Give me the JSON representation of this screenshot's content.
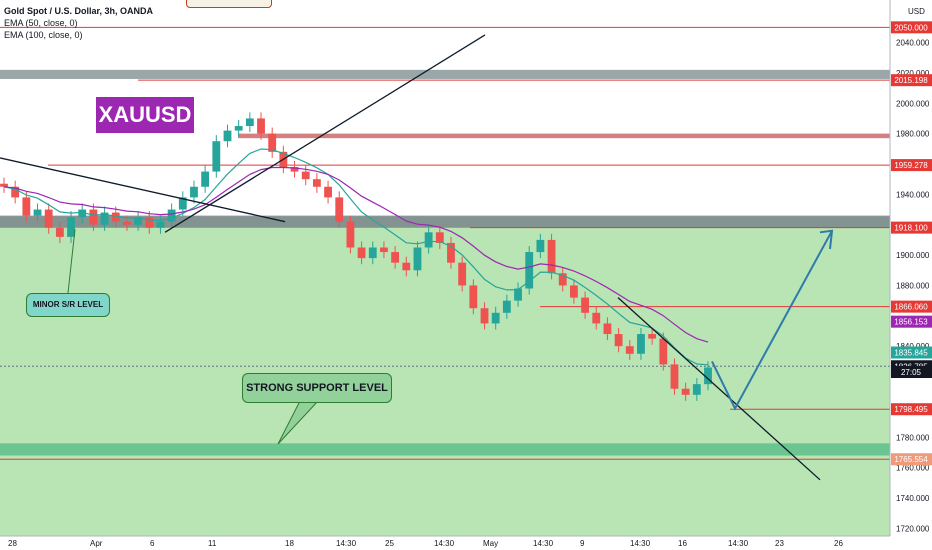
{
  "legend": {
    "title": "Gold Spot / U.S. Dollar, 3h, OANDA",
    "ema50": "EMA (50, close, 0)",
    "ema100": "EMA (100, close, 0)"
  },
  "badge": "XAUUSD",
  "callouts": {
    "minor": "MINOR S/R LEVEL",
    "strong": "STRONG SUPPORT LEVEL"
  },
  "axis": {
    "currency": "USD",
    "y_ticks": [
      "2040.000",
      "2020.000",
      "2000.000",
      "1980.000",
      "1940.000",
      "1900.000",
      "1880.000",
      "1840.000",
      "1780.000",
      "1760.000",
      "1740.000",
      "1720.000"
    ],
    "x_ticks": [
      "28",
      "Apr",
      "6",
      "11",
      "18",
      "14:30",
      "25",
      "14:30",
      "May",
      "14:30",
      "9",
      "14:30",
      "16",
      "14:30",
      "23",
      "26"
    ]
  },
  "price_tags": [
    {
      "value": "2050.000",
      "color": "#e53935"
    },
    {
      "value": "2015.198",
      "color": "#e53935"
    },
    {
      "value": "1959.278",
      "color": "#e53935"
    },
    {
      "value": "1918.100",
      "color": "#e53935"
    },
    {
      "value": "1866.060",
      "color": "#e53935"
    },
    {
      "value": "1856.153",
      "color": "#9c27b0"
    },
    {
      "value": "1835.845",
      "color": "#26a69a"
    },
    {
      "value": "1826.785",
      "color": "#131722"
    },
    {
      "value": "27:05",
      "color": "#131722"
    },
    {
      "value": "1798.495",
      "color": "#e53935"
    },
    {
      "value": "1765.554",
      "color": "#ef9a7a"
    }
  ],
  "colors": {
    "up": "#26a69a",
    "down": "#ef5350",
    "ema50": "#26a69a",
    "ema100": "#9c27b0",
    "green_zone": "#a8e0b0",
    "resistance_line": "#e53935",
    "trendline": "#0d1b2a",
    "arrow": "#2e7bab"
  },
  "chart_data": {
    "type": "candlestick",
    "symbol": "XAUUSD",
    "timeframe": "3h",
    "ylim": [
      1715,
      2068
    ],
    "levels": [
      2050.0,
      2015.198,
      1959.278,
      1918.1,
      1866.06,
      1798.495,
      1765.554
    ],
    "ema50_last": 1835.845,
    "ema100_last": 1856.153,
    "last_price": 1826.785,
    "close_path": [
      1945,
      1938,
      1926,
      1930,
      1918,
      1912,
      1925,
      1930,
      1920,
      1928,
      1922,
      1920,
      1925,
      1918,
      1922,
      1930,
      1938,
      1945,
      1955,
      1975,
      1982,
      1985,
      1990,
      1980,
      1968,
      1958,
      1955,
      1950,
      1945,
      1938,
      1922,
      1905,
      1898,
      1905,
      1902,
      1895,
      1890,
      1905,
      1915,
      1908,
      1895,
      1880,
      1865,
      1855,
      1862,
      1870,
      1878,
      1902,
      1910,
      1888,
      1880,
      1872,
      1862,
      1855,
      1848,
      1840,
      1835,
      1848,
      1845,
      1828,
      1812,
      1808,
      1815,
      1826
    ]
  }
}
